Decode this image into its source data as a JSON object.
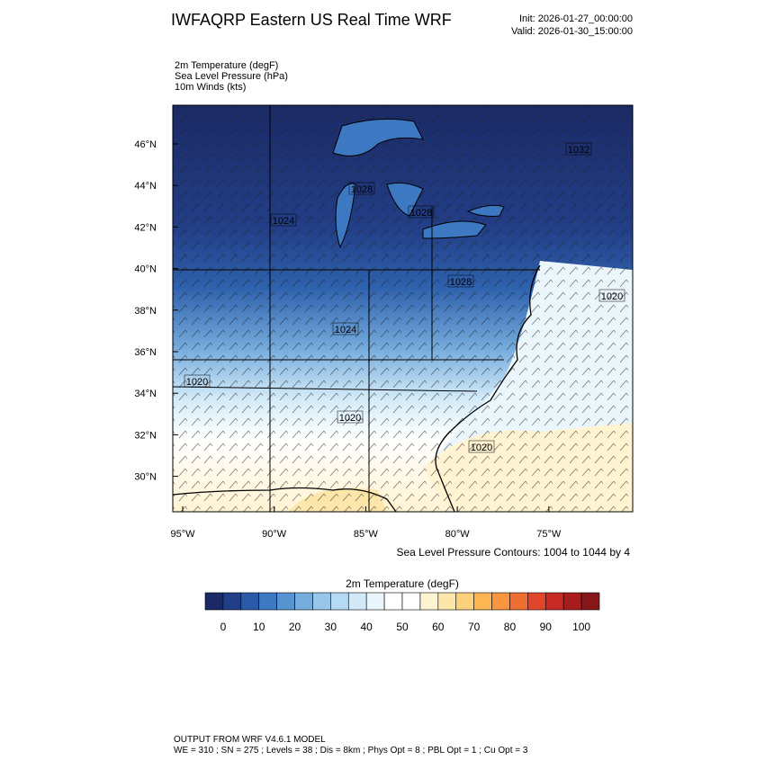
{
  "header": {
    "title": "IWFAQRP Eastern US Real Time WRF",
    "init": "Init: 2026-01-27_00:00:00",
    "valid": "Valid: 2026-01-30_15:00:00"
  },
  "fields": [
    "2m Temperature   (degF)",
    "Sea Level Pressure   (hPa)",
    "10m Winds   (kts)"
  ],
  "lat_labels": [
    "46°N",
    "44°N",
    "42°N",
    "40°N",
    "38°N",
    "36°N",
    "34°N",
    "32°N",
    "30°N"
  ],
  "lon_labels": [
    "95°W",
    "90°W",
    "85°W",
    "80°W",
    "75°W"
  ],
  "contour_labels": [
    "1032",
    "1028",
    "1028",
    "1024",
    "1028",
    "1024",
    "1020",
    "1020",
    "1020",
    "1020"
  ],
  "contour_caption": "Sea Level Pressure Contours: 1004 to 1044 by 4",
  "colorbar": {
    "title": "2m Temperature  (degF)",
    "labels": [
      "0",
      "10",
      "20",
      "30",
      "40",
      "50",
      "60",
      "70",
      "80",
      "90",
      "100"
    ],
    "colors": [
      "#1b2a66",
      "#223e86",
      "#2b5aa8",
      "#3d78c2",
      "#5793d0",
      "#76acdd",
      "#97c6ea",
      "#b5daf3",
      "#d2eaf8",
      "#ebf6fc",
      "#ffffff",
      "#ffffff",
      "#fff3d2",
      "#fde6aa",
      "#fcd17c",
      "#fbb553",
      "#f7963e",
      "#ef6f32",
      "#e0462a",
      "#c72a24",
      "#a81c1e",
      "#871719"
    ]
  },
  "footer": [
    "OUTPUT FROM WRF V4.6.1 MODEL",
    "WE = 310 ; SN = 275 ; Levels = 38 ; Dis = 8km ; Phys Opt = 8 ; PBL Opt = 1 ; Cu Opt = 3"
  ]
}
